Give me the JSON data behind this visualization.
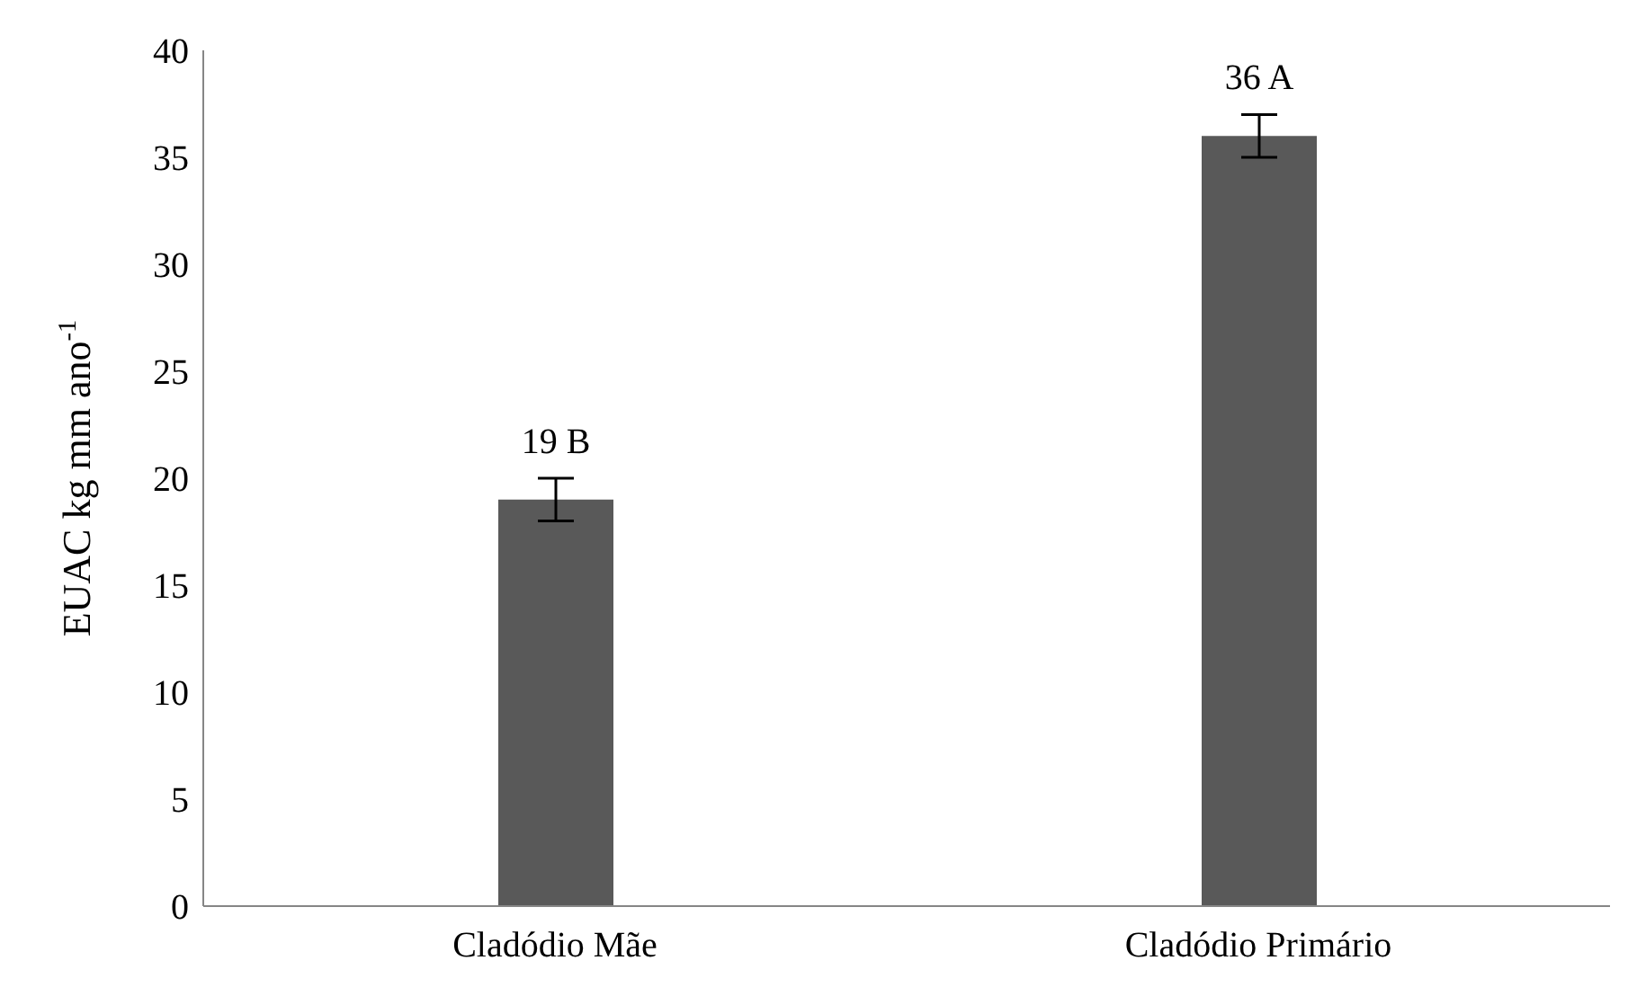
{
  "chart_data": {
    "type": "bar",
    "ylabel": "EUAC kg mm ano$^{-1}$",
    "categories": [
      "Cladódio Mãe",
      "Cladódio Primário"
    ],
    "values": [
      19,
      36
    ],
    "color": "#595959",
    "errors": [
      1,
      1
    ],
    "value_labels": [
      "19 B",
      "36 A"
    ],
    "ylim": [
      0,
      40
    ],
    "yticks": [
      0,
      5,
      10,
      15,
      20,
      25,
      30,
      35,
      40
    ],
    "grid": false,
    "legend": false
  }
}
